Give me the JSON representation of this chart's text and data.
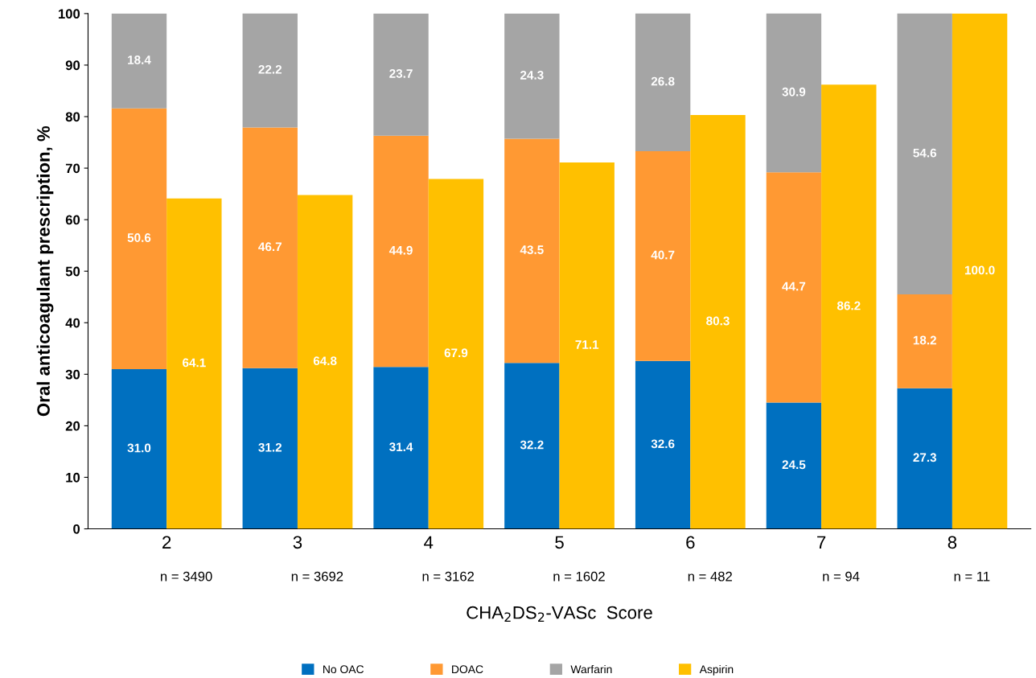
{
  "chart_data": [
    {
      "type": "bar",
      "stacked": true,
      "ylabel": "Oral anticoagulant prescription, %",
      "xlabel": "CHA$_{2}$DS$_{2}$-VASc  Score",
      "categories": [
        "2",
        "3",
        "4",
        "5",
        "6",
        "7",
        "8"
      ],
      "series": [
        {
          "name": "No OAC",
          "color": "#0070c0",
          "values": [
            31.0,
            31.2,
            31.4,
            32.2,
            32.6,
            24.5,
            27.3
          ],
          "value_labels": [
            "31.0",
            "31.2",
            "31.4",
            "32.2",
            "32.6",
            "24.5",
            "27.3"
          ]
        },
        {
          "name": "DOAC",
          "color": "#ff9933",
          "values": [
            50.6,
            46.7,
            44.9,
            43.5,
            40.7,
            44.7,
            18.2
          ],
          "value_labels": [
            "50.6",
            "46.7",
            "44.9",
            "43.5",
            "40.7",
            "44.7",
            "18.2"
          ]
        },
        {
          "name": "Warfarin",
          "color": "#a5a5a5",
          "values": [
            18.4,
            22.2,
            23.7,
            24.3,
            26.8,
            30.9,
            54.6
          ],
          "value_labels": [
            "18.4",
            "22.2",
            "23.7",
            "24.3",
            "26.8",
            "30.9",
            "54.6"
          ]
        }
      ],
      "ylim": [
        0,
        100
      ],
      "yticks": [
        0,
        10,
        20,
        30,
        40,
        50,
        60,
        70,
        80,
        90,
        100
      ],
      "grid": false,
      "legend": "bottom",
      "annotations": [
        "n = 3490",
        "n = 3692",
        "n = 3162",
        "n = 1602",
        "n = 482",
        "n = 94",
        "n = 11"
      ]
    },
    {
      "type": "bar",
      "categories": [
        "2",
        "3",
        "4",
        "5",
        "6",
        "7",
        "8"
      ],
      "series": [
        {
          "name": "Aspirin",
          "color": "#ffc000",
          "values": [
            64.1,
            64.8,
            67.9,
            71.1,
            80.3,
            86.2,
            100.0
          ],
          "value_labels": [
            "64.1",
            "64.8",
            "67.9",
            "71.1",
            "80.3",
            "86.2",
            "100.0"
          ]
        }
      ],
      "ylim": [
        0,
        100
      ],
      "tick_labels": false,
      "grid": false,
      "legend": "bottom"
    }
  ]
}
